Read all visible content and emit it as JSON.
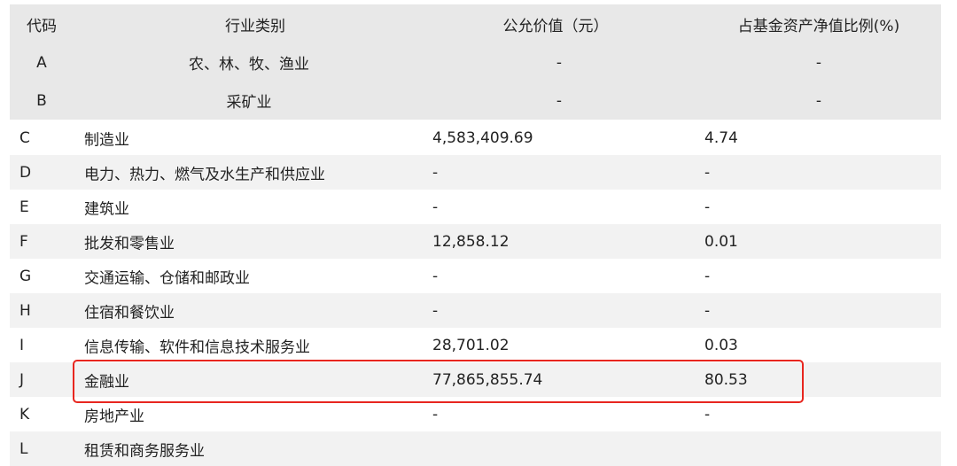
{
  "header": {
    "code": "代码",
    "industry": "行业类别",
    "fair_value": "公允价值（元）",
    "ratio": "占基金资产净值比例(%)"
  },
  "header_rows": [
    {
      "code": "A",
      "industry": "农、林、牧、渔业",
      "fair_value": "-",
      "ratio": "-"
    },
    {
      "code": "B",
      "industry": "采矿业",
      "fair_value": "-",
      "ratio": "-"
    }
  ],
  "rows": [
    {
      "code": "C",
      "industry": "制造业",
      "fair_value": "4,583,409.69",
      "ratio": "4.74"
    },
    {
      "code": "D",
      "industry": "电力、热力、燃气及水生产和供应业",
      "fair_value": "-",
      "ratio": "-"
    },
    {
      "code": "E",
      "industry": "建筑业",
      "fair_value": "-",
      "ratio": "-"
    },
    {
      "code": "F",
      "industry": "批发和零售业",
      "fair_value": "12,858.12",
      "ratio": "0.01"
    },
    {
      "code": "G",
      "industry": "交通运输、仓储和邮政业",
      "fair_value": "-",
      "ratio": "-"
    },
    {
      "code": "H",
      "industry": "住宿和餐饮业",
      "fair_value": "-",
      "ratio": "-"
    },
    {
      "code": "I",
      "industry": "信息传输、软件和信息技术服务业",
      "fair_value": "28,701.02",
      "ratio": "0.03"
    },
    {
      "code": "J",
      "industry": "金融业",
      "fair_value": "77,865,855.74",
      "ratio": "80.53"
    },
    {
      "code": "K",
      "industry": "房地产业",
      "fair_value": "-",
      "ratio": "-"
    },
    {
      "code": "L",
      "industry": "租赁和商务服务业",
      "fair_value": "",
      "ratio": ""
    }
  ],
  "highlight_color": "#e8261f"
}
